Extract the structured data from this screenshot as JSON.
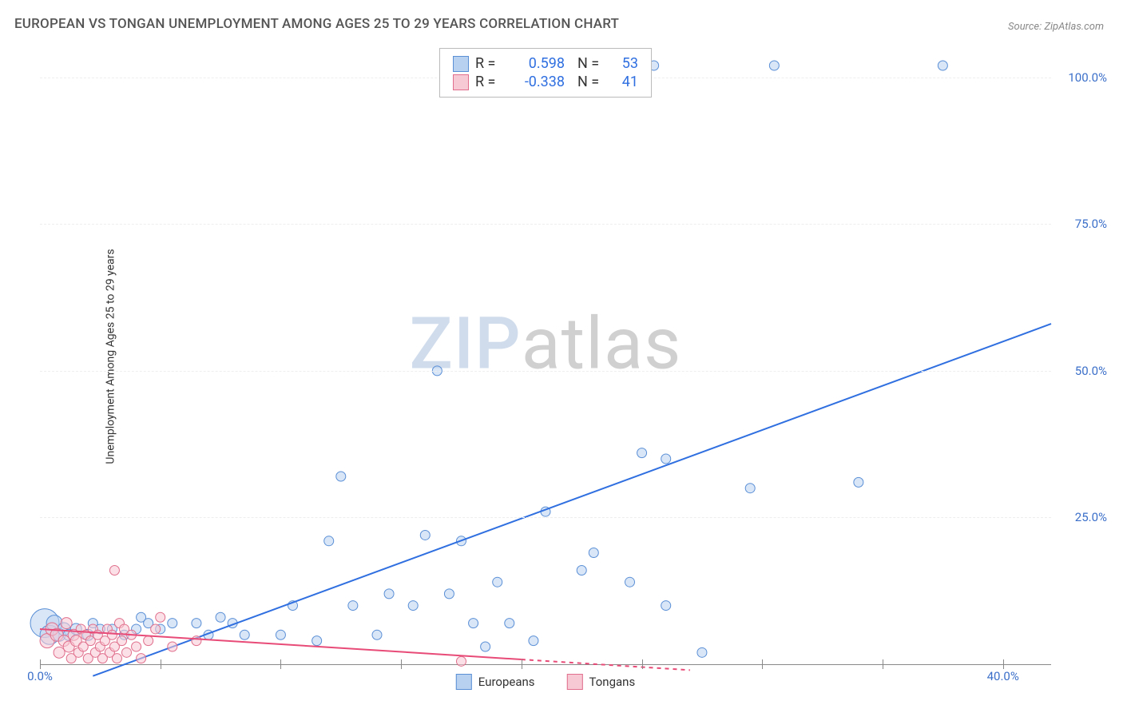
{
  "title": "EUROPEAN VS TONGAN UNEMPLOYMENT AMONG AGES 25 TO 29 YEARS CORRELATION CHART",
  "source_label": "Source: ",
  "source_value": "ZipAtlas.com",
  "y_axis_label": "Unemployment Among Ages 25 to 29 years",
  "watermark_zip": "ZIP",
  "watermark_atlas": "atlas",
  "chart": {
    "type": "scatter",
    "background_color": "#ffffff",
    "grid_color": "#eeeeee",
    "axis_color": "#888888",
    "xlim": [
      0,
      42
    ],
    "ylim": [
      0,
      105
    ],
    "x_ticks": [
      0,
      5,
      10,
      15,
      20,
      25,
      30,
      35,
      40
    ],
    "x_tick_labels": {
      "0": "0.0%",
      "40": "40.0%"
    },
    "y_ticks": [
      25,
      50,
      75,
      100
    ],
    "y_tick_labels": {
      "25": "25.0%",
      "50": "50.0%",
      "75": "75.0%",
      "100": "100.0%"
    },
    "y_tick_color": "#3b6fc9",
    "x_tick_color": "#3b6fc9",
    "point_radius_default": 6,
    "series": [
      {
        "name": "Europeans",
        "color_fill": "#b9d1f0",
        "color_stroke": "#5a8fd6",
        "fill_opacity": 0.55,
        "r_label": "R =",
        "r_value": "0.598",
        "n_label": "N =",
        "n_value": "53",
        "stat_color": "#2f6fe0",
        "trend": {
          "x1": 2.2,
          "y1": -2,
          "x2": 42,
          "y2": 58,
          "stroke": "#2f6fe0",
          "width": 2,
          "dash_from_x": null
        },
        "points": [
          {
            "x": 0.2,
            "y": 7,
            "r": 18
          },
          {
            "x": 0.4,
            "y": 5,
            "r": 12
          },
          {
            "x": 0.6,
            "y": 7,
            "r": 10
          },
          {
            "x": 0.8,
            "y": 5,
            "r": 8
          },
          {
            "x": 1.0,
            "y": 6,
            "r": 8
          },
          {
            "x": 1.2,
            "y": 5,
            "r": 7
          },
          {
            "x": 1.5,
            "y": 6,
            "r": 7
          },
          {
            "x": 2.0,
            "y": 5,
            "r": 7
          },
          {
            "x": 2.2,
            "y": 7,
            "r": 6
          },
          {
            "x": 2.5,
            "y": 6,
            "r": 6
          },
          {
            "x": 3.0,
            "y": 6,
            "r": 6
          },
          {
            "x": 3.5,
            "y": 5,
            "r": 6
          },
          {
            "x": 4.0,
            "y": 6,
            "r": 6
          },
          {
            "x": 4.2,
            "y": 8,
            "r": 6
          },
          {
            "x": 4.5,
            "y": 7,
            "r": 6
          },
          {
            "x": 5.0,
            "y": 6,
            "r": 6
          },
          {
            "x": 5.5,
            "y": 7,
            "r": 6
          },
          {
            "x": 6.5,
            "y": 7,
            "r": 6
          },
          {
            "x": 7.0,
            "y": 5,
            "r": 6
          },
          {
            "x": 7.5,
            "y": 8,
            "r": 6
          },
          {
            "x": 8.0,
            "y": 7,
            "r": 6
          },
          {
            "x": 8.5,
            "y": 5,
            "r": 6
          },
          {
            "x": 10.0,
            "y": 5,
            "r": 6
          },
          {
            "x": 10.5,
            "y": 10,
            "r": 6
          },
          {
            "x": 11.5,
            "y": 4,
            "r": 6
          },
          {
            "x": 12.0,
            "y": 21,
            "r": 6
          },
          {
            "x": 12.5,
            "y": 32,
            "r": 6
          },
          {
            "x": 13.0,
            "y": 10,
            "r": 6
          },
          {
            "x": 14.0,
            "y": 5,
            "r": 6
          },
          {
            "x": 14.5,
            "y": 12,
            "r": 6
          },
          {
            "x": 15.5,
            "y": 10,
            "r": 6
          },
          {
            "x": 16.0,
            "y": 22,
            "r": 6
          },
          {
            "x": 16.5,
            "y": 50,
            "r": 6
          },
          {
            "x": 17.0,
            "y": 12,
            "r": 6
          },
          {
            "x": 17.5,
            "y": 21,
            "r": 6
          },
          {
            "x": 18.0,
            "y": 7,
            "r": 6
          },
          {
            "x": 18.5,
            "y": 3,
            "r": 6
          },
          {
            "x": 19.0,
            "y": 14,
            "r": 6
          },
          {
            "x": 19.5,
            "y": 7,
            "r": 6
          },
          {
            "x": 20.5,
            "y": 4,
            "r": 6
          },
          {
            "x": 21.0,
            "y": 26,
            "r": 6
          },
          {
            "x": 22.5,
            "y": 16,
            "r": 6
          },
          {
            "x": 23.0,
            "y": 19,
            "r": 6
          },
          {
            "x": 24.5,
            "y": 14,
            "r": 6
          },
          {
            "x": 25.0,
            "y": 36,
            "r": 6
          },
          {
            "x": 26.0,
            "y": 35,
            "r": 6
          },
          {
            "x": 26.0,
            "y": 10,
            "r": 6
          },
          {
            "x": 27.5,
            "y": 2,
            "r": 6
          },
          {
            "x": 29.5,
            "y": 30,
            "r": 6
          },
          {
            "x": 25.5,
            "y": 102,
            "r": 6
          },
          {
            "x": 30.5,
            "y": 102,
            "r": 6
          },
          {
            "x": 34.0,
            "y": 31,
            "r": 6
          },
          {
            "x": 37.5,
            "y": 102,
            "r": 6
          }
        ]
      },
      {
        "name": "Tongans",
        "color_fill": "#f7c9d4",
        "color_stroke": "#e06e8c",
        "fill_opacity": 0.55,
        "r_label": "R =",
        "r_value": "-0.338",
        "n_label": "N =",
        "n_value": "41",
        "stat_color": "#2f6fe0",
        "trend": {
          "x1": 0,
          "y1": 6,
          "x2": 27,
          "y2": -1,
          "stroke": "#e84b77",
          "width": 2,
          "dash_from_x": 20
        },
        "points": [
          {
            "x": 0.3,
            "y": 4,
            "r": 9
          },
          {
            "x": 0.5,
            "y": 6,
            "r": 8
          },
          {
            "x": 0.7,
            "y": 5,
            "r": 8
          },
          {
            "x": 0.8,
            "y": 2,
            "r": 7
          },
          {
            "x": 1.0,
            "y": 4,
            "r": 7
          },
          {
            "x": 1.1,
            "y": 7,
            "r": 7
          },
          {
            "x": 1.2,
            "y": 3,
            "r": 7
          },
          {
            "x": 1.3,
            "y": 1,
            "r": 6
          },
          {
            "x": 1.4,
            "y": 5,
            "r": 7
          },
          {
            "x": 1.5,
            "y": 4,
            "r": 7
          },
          {
            "x": 1.6,
            "y": 2,
            "r": 6
          },
          {
            "x": 1.7,
            "y": 6,
            "r": 6
          },
          {
            "x": 1.8,
            "y": 3,
            "r": 6
          },
          {
            "x": 1.9,
            "y": 5,
            "r": 6
          },
          {
            "x": 2.0,
            "y": 1,
            "r": 6
          },
          {
            "x": 2.1,
            "y": 4,
            "r": 6
          },
          {
            "x": 2.2,
            "y": 6,
            "r": 6
          },
          {
            "x": 2.3,
            "y": 2,
            "r": 6
          },
          {
            "x": 2.4,
            "y": 5,
            "r": 6
          },
          {
            "x": 2.5,
            "y": 3,
            "r": 6
          },
          {
            "x": 2.6,
            "y": 1,
            "r": 6
          },
          {
            "x": 2.7,
            "y": 4,
            "r": 6
          },
          {
            "x": 2.8,
            "y": 6,
            "r": 6
          },
          {
            "x": 2.9,
            "y": 2,
            "r": 6
          },
          {
            "x": 3.0,
            "y": 5,
            "r": 6
          },
          {
            "x": 3.1,
            "y": 3,
            "r": 6
          },
          {
            "x": 3.2,
            "y": 1,
            "r": 6
          },
          {
            "x": 3.3,
            "y": 7,
            "r": 6
          },
          {
            "x": 3.4,
            "y": 4,
            "r": 6
          },
          {
            "x": 3.5,
            "y": 6,
            "r": 6
          },
          {
            "x": 3.1,
            "y": 16,
            "r": 6
          },
          {
            "x": 3.6,
            "y": 2,
            "r": 6
          },
          {
            "x": 3.8,
            "y": 5,
            "r": 6
          },
          {
            "x": 4.0,
            "y": 3,
            "r": 6
          },
          {
            "x": 4.2,
            "y": 1,
            "r": 6
          },
          {
            "x": 4.5,
            "y": 4,
            "r": 6
          },
          {
            "x": 4.8,
            "y": 6,
            "r": 6
          },
          {
            "x": 5.0,
            "y": 8,
            "r": 6
          },
          {
            "x": 5.5,
            "y": 3,
            "r": 6
          },
          {
            "x": 6.5,
            "y": 4,
            "r": 6
          },
          {
            "x": 17.5,
            "y": 0.5,
            "r": 6
          }
        ]
      }
    ]
  },
  "legend_bottom": [
    {
      "label": "Europeans",
      "fill": "#b9d1f0",
      "stroke": "#5a8fd6"
    },
    {
      "label": "Tongans",
      "fill": "#f7c9d4",
      "stroke": "#e06e8c"
    }
  ]
}
